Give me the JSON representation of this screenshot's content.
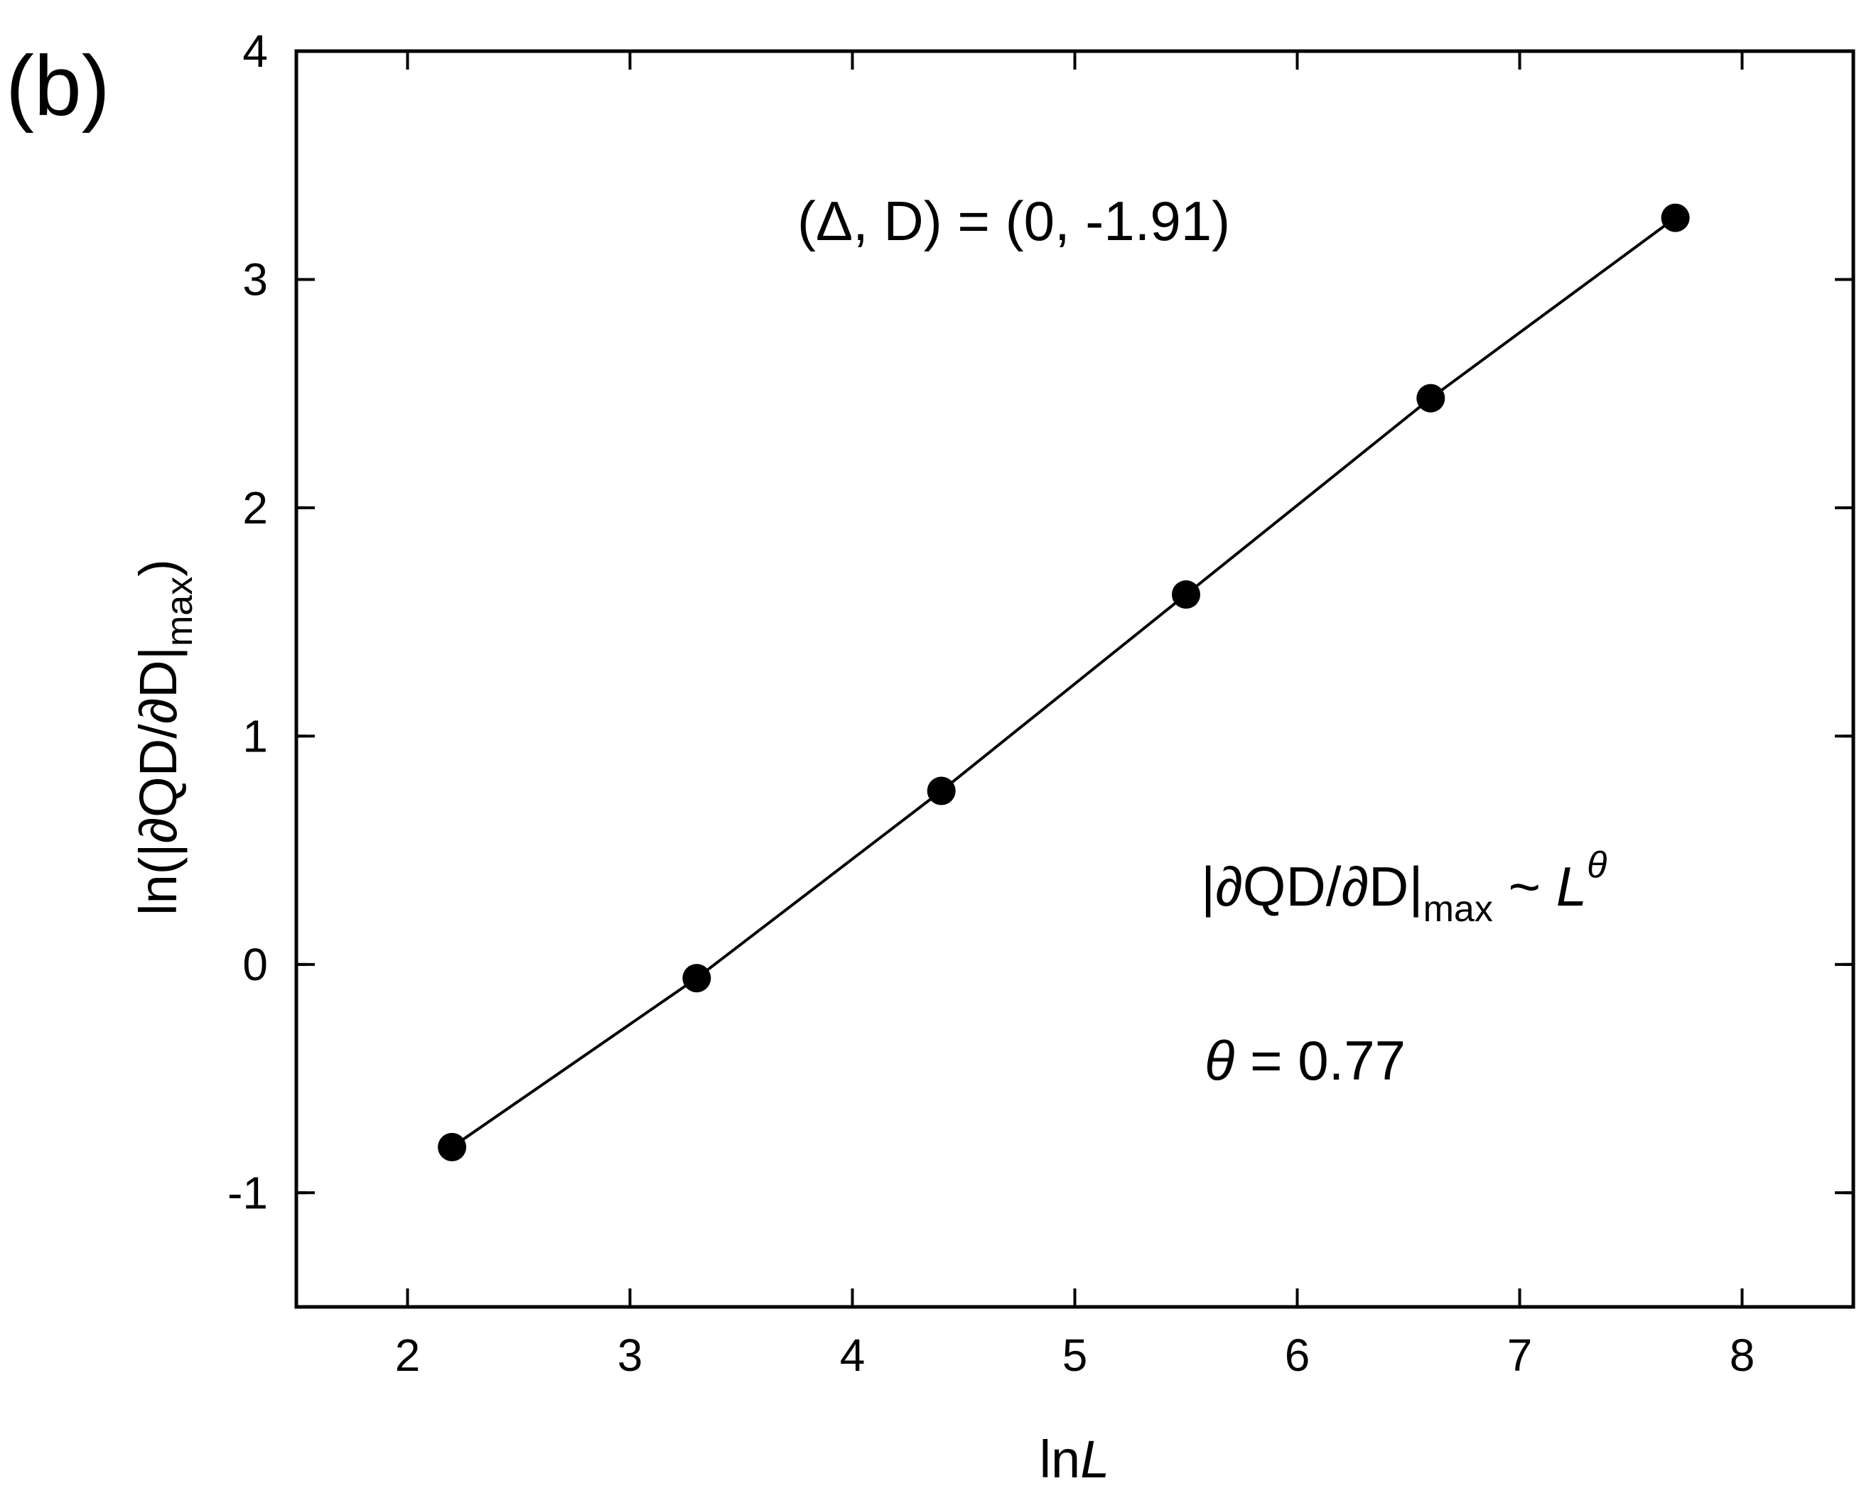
{
  "panel_label": "(b)",
  "annotations": {
    "params": "(Δ, D) = (0, -1.91)",
    "scaling_abs": "|∂QD/∂D|",
    "scaling_sub": "max",
    "scaling_tilde": " ~ ",
    "scaling_L": "L",
    "scaling_exp": "θ",
    "theta_symbol": "θ",
    "theta_value": " = 0.77"
  },
  "chart_data": {
    "type": "line",
    "xlabel": {
      "prefix": "ln",
      "var": "L"
    },
    "ylabel": {
      "main": "ln(|∂QD/∂D|",
      "sub": "max",
      "close": ")"
    },
    "xlim": [
      1.5,
      8.5
    ],
    "ylim": [
      -1.5,
      4
    ],
    "xticks": [
      "2",
      "3",
      "4",
      "5",
      "6",
      "7",
      "8"
    ],
    "yticks": [
      "-1",
      "0",
      "1",
      "2",
      "3",
      "4"
    ],
    "grid": false,
    "legend": "none",
    "marker": "filled-circle",
    "color": "#000000",
    "series": [
      {
        "x": [
          2.2,
          3.3,
          4.4,
          5.5,
          6.6,
          7.7
        ],
        "y": [
          -0.8,
          -0.06,
          0.76,
          1.62,
          2.48,
          3.27
        ]
      }
    ]
  }
}
